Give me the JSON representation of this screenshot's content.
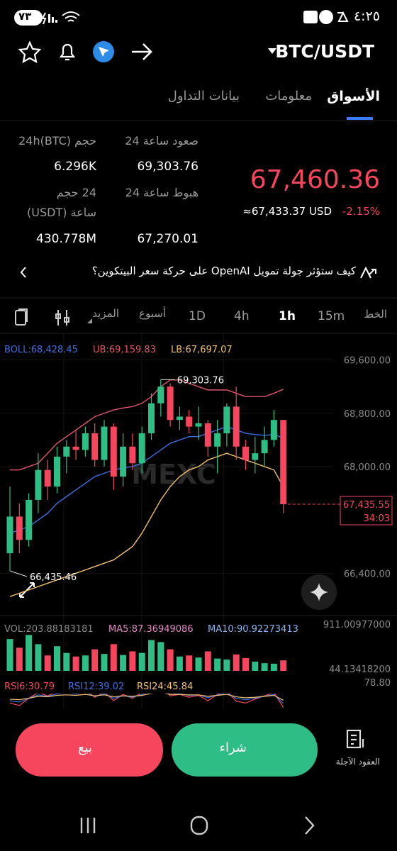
{
  "status_bar": {
    "time": "٤:٢٥",
    "battery": "٧٣"
  },
  "header": {
    "pair": "BTC/USDT"
  },
  "tabs": [
    "الأسواق",
    "معلومات",
    "بيانات التداول"
  ],
  "stats": {
    "vol_btc_label": "حجم 24h(BTC)",
    "vol_btc": "6.296K",
    "high_label": "صعود ساعة 24",
    "high": "69,303.76",
    "vol_usdt_label_1": "24 حجم",
    "vol_usdt_label_2": "ساعة (USDT)",
    "vol_usdt": "430.778M",
    "low_label": "هبوط ساعة 24",
    "low": "67,270.01"
  },
  "price": {
    "last": "67,460.36",
    "usd": "≈67,433.37 USD",
    "change": "-2.15%"
  },
  "news": "كيف ستؤثر جولة تمويل OpenAI على حركة سعر البيتكوين؟",
  "timeframes": [
    "الخط",
    "15m",
    "1h",
    "4h",
    "1D",
    "أسبوع",
    "المزيد"
  ],
  "chart": {
    "type": "candlestick",
    "watermark": "MEXC",
    "boll_label": "BOLL:68,428.45",
    "ub_label": "UB:69,159.83",
    "lb_label": "LB:67,697.07",
    "ylim": [
      65850,
      70000
    ],
    "yticks": [
      {
        "value": 69600,
        "label": "69,600.00"
      },
      {
        "value": 68800,
        "label": "68,800.00"
      },
      {
        "value": 68000,
        "label": "68,000.00"
      },
      {
        "value": 66400,
        "label": "66,400.00"
      }
    ],
    "candles": [
      [
        66700,
        67700,
        66435.46,
        67250
      ],
      [
        67250,
        67450,
        66700,
        66900
      ],
      [
        66900,
        67600,
        66800,
        67500
      ],
      [
        67500,
        68200,
        67300,
        67950
      ],
      [
        67950,
        68100,
        67500,
        67700
      ],
      [
        67700,
        68300,
        67600,
        68150
      ],
      [
        68150,
        68400,
        67900,
        68300
      ],
      [
        68300,
        68550,
        68100,
        68250
      ],
      [
        68250,
        68600,
        68150,
        68500
      ],
      [
        68500,
        68650,
        68000,
        68100
      ],
      [
        68100,
        68700,
        68000,
        68600
      ],
      [
        68600,
        68650,
        67650,
        67850
      ],
      [
        67850,
        68500,
        67700,
        68300
      ],
      [
        68300,
        68500,
        67950,
        68050
      ],
      [
        68050,
        68600,
        67900,
        68500
      ],
      [
        68500,
        69100,
        68400,
        68950
      ],
      [
        68950,
        69303.76,
        68750,
        69200
      ],
      [
        69200,
        69250,
        68600,
        68700
      ],
      [
        68700,
        68900,
        68550,
        68750
      ],
      [
        68750,
        68850,
        68500,
        68600
      ],
      [
        68600,
        68900,
        68400,
        68650
      ],
      [
        68650,
        68700,
        68150,
        68300
      ],
      [
        68300,
        68700,
        67900,
        68500
      ],
      [
        68500,
        68950,
        68300,
        68900
      ],
      [
        68900,
        69200,
        68100,
        68300
      ],
      [
        68300,
        68400,
        67950,
        68100
      ],
      [
        68100,
        68450,
        67900,
        68200
      ],
      [
        68200,
        68600,
        68000,
        68400
      ],
      [
        68400,
        68850,
        68300,
        68700
      ],
      [
        68700,
        68700,
        67300,
        67435.55
      ]
    ],
    "boll_upper": [
      67950,
      67950,
      68000,
      68050,
      68200,
      68350,
      68450,
      68550,
      68650,
      68750,
      68800,
      68850,
      68880,
      68900,
      68950,
      69050,
      69200,
      69300,
      69300,
      69250,
      69200,
      69150,
      69150,
      69150,
      69100,
      69050,
      69050,
      69050,
      69100,
      69159.83
    ],
    "boll_mid": [
      67000,
      67050,
      67100,
      67200,
      67300,
      67450,
      67550,
      67650,
      67750,
      67850,
      67900,
      67950,
      67980,
      68000,
      68050,
      68150,
      68250,
      68350,
      68400,
      68450,
      68450,
      68500,
      68550,
      68600,
      68550,
      68500,
      68480,
      68470,
      68480,
      68428.45
    ],
    "boll_lower": [
      66050,
      66100,
      66150,
      66200,
      66250,
      66300,
      66350,
      66400,
      66450,
      66500,
      66550,
      66600,
      66700,
      66800,
      67000,
      67250,
      67500,
      67700,
      67850,
      67950,
      68000,
      68100,
      68150,
      68200,
      68150,
      68100,
      68050,
      68000,
      67950,
      67697.07
    ],
    "max_marker": {
      "value": 69303.76,
      "label": "69,303.76"
    },
    "min_marker": {
      "value": 66435.46,
      "label": "66,435.46"
    },
    "last_price": {
      "value": 67435.55,
      "label": "67,435.55"
    },
    "countdown": "34:03",
    "vol_label": "VOL:203.88183181",
    "ma5_label": "MA5:87.36949086",
    "ma10_label": "MA10:90.92273413",
    "vlim": [
      0,
      911.00977
    ],
    "vticks": [
      {
        "value": 911.00977,
        "label": "911.00977000"
      },
      {
        "value": 44.134182,
        "label": "44.13418200"
      }
    ],
    "volumes": [
      620,
      450,
      700,
      520,
      300,
      480,
      350,
      280,
      300,
      420,
      330,
      520,
      310,
      380,
      350,
      600,
      560,
      420,
      280,
      300,
      260,
      380,
      240,
      220,
      320,
      250,
      180,
      150,
      140,
      203.88183181
    ],
    "rsi6_label": "RSI6:30.79",
    "rsi12_label": "RSI12:39.02",
    "rsi24_label": "RSI24:45.84",
    "rlim": [
      20,
      78.8
    ],
    "rticks": [
      {
        "value": 78.8,
        "label": "78.80"
      }
    ],
    "rsi6": [
      40,
      35,
      50,
      62,
      55,
      64,
      67,
      63,
      68,
      52,
      63,
      45,
      58,
      50,
      62,
      72,
      76,
      55,
      58,
      52,
      56,
      45,
      58,
      65,
      44,
      40,
      48,
      55,
      62,
      30.79
    ],
    "rsi12": [
      45,
      42,
      50,
      57,
      54,
      59,
      61,
      59,
      62,
      54,
      59,
      50,
      55,
      52,
      58,
      64,
      68,
      58,
      59,
      56,
      57,
      51,
      57,
      61,
      50,
      47,
      50,
      54,
      58,
      39.02
    ],
    "rsi24": [
      48,
      47,
      50,
      54,
      53,
      56,
      57,
      56,
      58,
      55,
      57,
      53,
      55,
      54,
      56,
      60,
      62,
      58,
      58,
      57,
      57,
      54,
      56,
      58,
      53,
      51,
      52,
      54,
      56,
      45.84
    ]
  },
  "actions": {
    "sell": "بيع",
    "buy": "شراء",
    "futures": "العقود الآجلة"
  }
}
